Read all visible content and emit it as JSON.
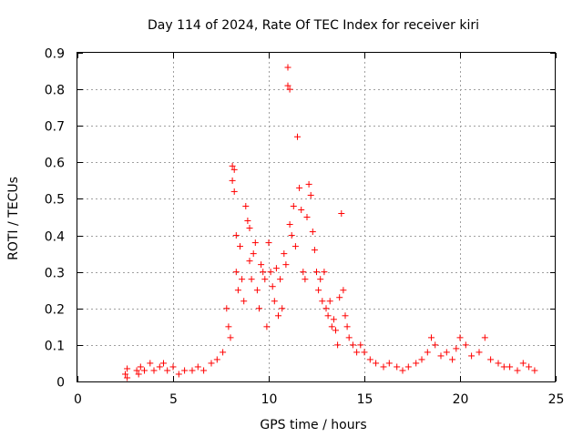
{
  "chart_data": {
    "type": "scatter",
    "title": "Day 114 of 2024, Rate Of TEC Index for receiver kiri",
    "xlabel": "GPS time / hours",
    "ylabel": "ROTI / TECUs",
    "xlim": [
      0,
      25
    ],
    "ylim": [
      0,
      0.9
    ],
    "xticks": [
      "0",
      "5",
      "10",
      "15",
      "20",
      "25"
    ],
    "yticks": [
      "0",
      "0.1",
      "0.2",
      "0.3",
      "0.4",
      "0.5",
      "0.6",
      "0.7",
      "0.8",
      "0.9"
    ],
    "grid": true,
    "marker": "+",
    "color": "#ff0000",
    "series": [
      {
        "name": "ROTI",
        "x": [
          2.5,
          2.6,
          2.6,
          3.1,
          3.2,
          3.3,
          3.5,
          3.8,
          4.0,
          4.3,
          4.5,
          4.7,
          5.0,
          5.3,
          5.6,
          6.0,
          6.3,
          6.6,
          7.0,
          7.3,
          7.6,
          7.8,
          7.9,
          8.0,
          8.1,
          8.1,
          8.2,
          8.2,
          8.3,
          8.3,
          8.4,
          8.5,
          8.6,
          8.7,
          8.8,
          8.9,
          9.0,
          9.0,
          9.1,
          9.2,
          9.3,
          9.4,
          9.5,
          9.6,
          9.7,
          9.8,
          9.9,
          10.0,
          10.1,
          10.2,
          10.3,
          10.4,
          10.5,
          10.6,
          10.7,
          10.8,
          10.9,
          11.0,
          11.0,
          11.1,
          11.1,
          11.2,
          11.3,
          11.4,
          11.5,
          11.6,
          11.7,
          11.8,
          11.9,
          12.0,
          12.1,
          12.2,
          12.3,
          12.4,
          12.5,
          12.6,
          12.7,
          12.8,
          12.9,
          13.0,
          13.1,
          13.2,
          13.3,
          13.4,
          13.5,
          13.6,
          13.7,
          13.8,
          13.9,
          14.0,
          14.1,
          14.2,
          14.4,
          14.6,
          14.8,
          15.0,
          15.3,
          15.6,
          16.0,
          16.3,
          16.7,
          17.0,
          17.3,
          17.7,
          18.0,
          18.3,
          18.5,
          18.7,
          19.0,
          19.3,
          19.6,
          19.8,
          20.0,
          20.3,
          20.6,
          21.0,
          21.3,
          21.6,
          22.0,
          22.3,
          22.6,
          23.0,
          23.3,
          23.6,
          23.9
        ],
        "y": [
          0.02,
          0.035,
          0.01,
          0.03,
          0.02,
          0.04,
          0.03,
          0.05,
          0.03,
          0.04,
          0.05,
          0.03,
          0.04,
          0.02,
          0.03,
          0.03,
          0.04,
          0.03,
          0.05,
          0.06,
          0.08,
          0.2,
          0.15,
          0.12,
          0.59,
          0.55,
          0.58,
          0.52,
          0.4,
          0.3,
          0.25,
          0.37,
          0.28,
          0.22,
          0.48,
          0.44,
          0.42,
          0.33,
          0.28,
          0.35,
          0.38,
          0.25,
          0.2,
          0.32,
          0.3,
          0.28,
          0.15,
          0.38,
          0.3,
          0.26,
          0.22,
          0.31,
          0.18,
          0.28,
          0.2,
          0.35,
          0.32,
          0.86,
          0.81,
          0.8,
          0.43,
          0.4,
          0.48,
          0.37,
          0.67,
          0.53,
          0.47,
          0.3,
          0.28,
          0.45,
          0.54,
          0.51,
          0.41,
          0.36,
          0.3,
          0.25,
          0.28,
          0.22,
          0.3,
          0.2,
          0.18,
          0.22,
          0.15,
          0.17,
          0.14,
          0.1,
          0.23,
          0.46,
          0.25,
          0.18,
          0.15,
          0.12,
          0.1,
          0.08,
          0.1,
          0.08,
          0.06,
          0.05,
          0.04,
          0.05,
          0.04,
          0.03,
          0.04,
          0.05,
          0.06,
          0.08,
          0.12,
          0.1,
          0.07,
          0.08,
          0.06,
          0.09,
          0.12,
          0.1,
          0.07,
          0.08,
          0.12,
          0.06,
          0.05,
          0.04,
          0.04,
          0.03,
          0.05,
          0.04,
          0.03
        ]
      }
    ]
  }
}
